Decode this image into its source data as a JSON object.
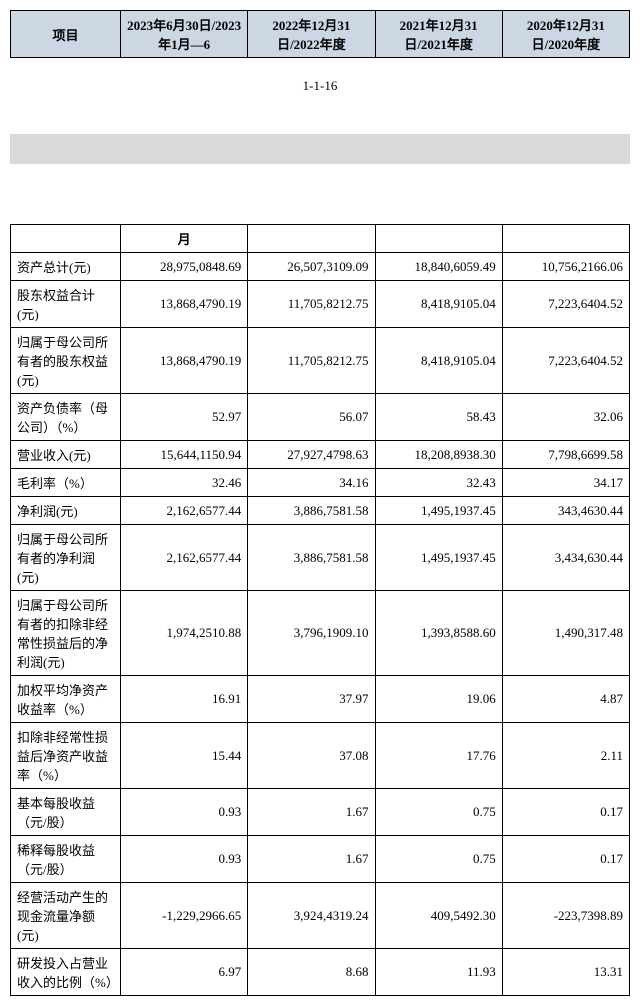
{
  "header_table": {
    "columns": [
      "项目",
      "2023年6月30日/2023年1月—6",
      "2022年12月31日/2022年度",
      "2021年12月31日/2021年度",
      "2020年12月31日/2020年度"
    ]
  },
  "page_number": "1-1-16",
  "data_table": {
    "month_header": "月",
    "rows": [
      {
        "label": "资产总计(元)",
        "v": [
          "28,975,0848.69",
          "26,507,3109.09",
          "18,840,6059.49",
          "10,756,2166.06"
        ]
      },
      {
        "label": "股东权益合计(元)",
        "v": [
          "13,868,4790.19",
          "11,705,8212.75",
          "8,418,9105.04",
          "7,223,6404.52"
        ]
      },
      {
        "label": "归属于母公司所有者的股东权益(元)",
        "v": [
          "13,868,4790.19",
          "11,705,8212.75",
          "8,418,9105.04",
          "7,223,6404.52"
        ]
      },
      {
        "label": "资产负债率（母公司）（%）",
        "v": [
          "52.97",
          "56.07",
          "58.43",
          "32.06"
        ]
      },
      {
        "label": "营业收入(元)",
        "v": [
          "15,644,1150.94",
          "27,927,4798.63",
          "18,208,8938.30",
          "7,798,6699.58"
        ]
      },
      {
        "label": "毛利率（%）",
        "v": [
          "32.46",
          "34.16",
          "32.43",
          "34.17"
        ]
      },
      {
        "label": "净利润(元)",
        "v": [
          "2,162,6577.44",
          "3,886,7581.58",
          "1,495,1937.45",
          "343,4630.44"
        ]
      },
      {
        "label": "归属于母公司所有者的净利润(元)",
        "v": [
          "2,162,6577.44",
          "3,886,7581.58",
          "1,495,1937.45",
          "3,434,630.44"
        ]
      },
      {
        "label": "归属于母公司所有者的扣除非经常性损益后的净利润(元)",
        "v": [
          "1,974,2510.88",
          "3,796,1909.10",
          "1,393,8588.60",
          "1,490,317.48"
        ]
      },
      {
        "label": "加权平均净资产收益率（%）",
        "v": [
          "16.91",
          "37.97",
          "19.06",
          "4.87"
        ]
      },
      {
        "label": "扣除非经常性损益后净资产收益率（%）",
        "v": [
          "15.44",
          "37.08",
          "17.76",
          "2.11"
        ]
      },
      {
        "label": "基本每股收益（元/股）",
        "v": [
          "0.93",
          "1.67",
          "0.75",
          "0.17"
        ]
      },
      {
        "label": "稀释每股收益（元/股）",
        "v": [
          "0.93",
          "1.67",
          "0.75",
          "0.17"
        ]
      },
      {
        "label": "经营活动产生的现金流量净额(元)",
        "v": [
          "-1,229,2966.65",
          "3,924,4319.24",
          "409,5492.30",
          "-223,7398.89"
        ]
      },
      {
        "label": "研发投入占营业收入的比例（%）",
        "v": [
          "6.97",
          "8.68",
          "11.93",
          "13.31"
        ]
      }
    ]
  }
}
